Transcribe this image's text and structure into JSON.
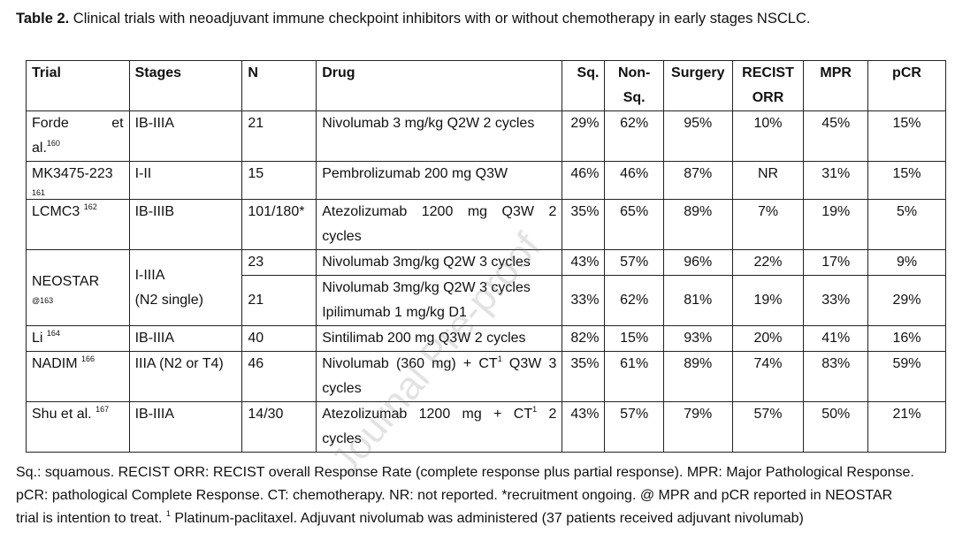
{
  "caption": {
    "label": "Table 2.",
    "text": " Clinical trials with neoadjuvant immune checkpoint inhibitors with or without chemotherapy in early stages NSCLC."
  },
  "table": {
    "headers": {
      "trial": "Trial",
      "stages": "Stages",
      "n": "N",
      "drug": "Drug",
      "sq": "Sq.",
      "nonsq_1": "Non-",
      "nonsq_2": "Sq.",
      "surgery": "Surgery",
      "recist_1": "RECIST",
      "recist_2": "ORR",
      "mpr": "MPR",
      "pcr": "pCR"
    },
    "rows": [
      {
        "trial_a": "Forde",
        "trial_b": "et",
        "trial_c": "al.",
        "ref": "160",
        "stages": "IB-IIIA",
        "n": "21",
        "drug": "Nivolumab 3 mg/kg Q2W 2 cycles",
        "sq": "29%",
        "nonsq": "62%",
        "surgery": "95%",
        "orr": "10%",
        "mpr": "45%",
        "pcr": "15%"
      },
      {
        "trial": "MK3475-223",
        "ref": "161",
        "stages": "I-II",
        "n": "15",
        "drug": "Pembrolizumab 200 mg Q3W",
        "sq": "46%",
        "nonsq": "46%",
        "surgery": "87%",
        "orr": "NR",
        "mpr": "31%",
        "pcr": "15%"
      },
      {
        "trial": "LCMC3",
        "ref": "162",
        "stages": "IB-IIIB",
        "n": "101/180*",
        "drug_1": "Atezolizumab 1200 mg Q3W 2",
        "drug_2": "cycles",
        "sq": "35%",
        "nonsq": "65%",
        "surgery": "89%",
        "orr": "7%",
        "mpr": "19%",
        "pcr": "5%"
      },
      {
        "trial": "NEOSTAR",
        "ref": "@163",
        "stages_1": "I-IIIA",
        "stages_2": "(N2 single)",
        "n": "23",
        "drug": "Nivolumab 3mg/kg Q2W 3 cycles",
        "sq": "43%",
        "nonsq": "57%",
        "surgery": "96%",
        "orr": "22%",
        "mpr": "17%",
        "pcr": "9%"
      },
      {
        "n": "21",
        "drug_1": "Nivolumab 3mg/kg Q2W 3 cycles",
        "drug_2": "Ipilimumab 1 mg/kg D1",
        "sq": "33%",
        "nonsq": "62%",
        "surgery": "81%",
        "orr": "19%",
        "mpr": "33%",
        "pcr": "29%"
      },
      {
        "trial": "Li",
        "ref": "164",
        "stages": "IB-IIIA",
        "n": "40",
        "drug": "Sintilimab 200 mg Q3W 2 cycles",
        "sq": "82%",
        "nonsq": "15%",
        "surgery": "93%",
        "orr": "20%",
        "mpr": "41%",
        "pcr": "16%"
      },
      {
        "trial": "NADIM",
        "ref": "166",
        "stages": "IIIA (N2 or T4)",
        "n": "46",
        "drug_1a": "Nivolumab (360 mg) + CT",
        "drug_sup": "1",
        "drug_1b": " Q3W 3",
        "drug_2": "cycles",
        "sq": "35%",
        "nonsq": "61%",
        "surgery": "89%",
        "orr": "74%",
        "mpr": "83%",
        "pcr": "59%"
      },
      {
        "trial": "Shu et al.",
        "ref": "167",
        "stages": "IB-IIIA",
        "n": "14/30",
        "drug_1a": "Atezolizumab 1200 mg + CT",
        "drug_sup": "1",
        "drug_1b": " 2",
        "drug_2": "cycles",
        "sq": "43%",
        "nonsq": "57%",
        "surgery": "79%",
        "orr": "57%",
        "mpr": "50%",
        "pcr": "21%"
      }
    ]
  },
  "footnote": {
    "line1": "Sq.: squamous. RECIST ORR: RECIST overall Response Rate (complete response plus partial response). MPR: Major Pathological Response.",
    "line2": "pCR: pathological Complete Response. CT: chemotherapy. NR: not reported. *recruitment ongoing. @ MPR and pCR reported in NEOSTAR",
    "line3a": "trial is intention to treat. ",
    "line3_sup": "1",
    "line3b": " Platinum-paclitaxel. Adjuvant nivolumab was administered (37 patients received adjuvant nivolumab)"
  },
  "watermark": "Journal Pre-proof"
}
